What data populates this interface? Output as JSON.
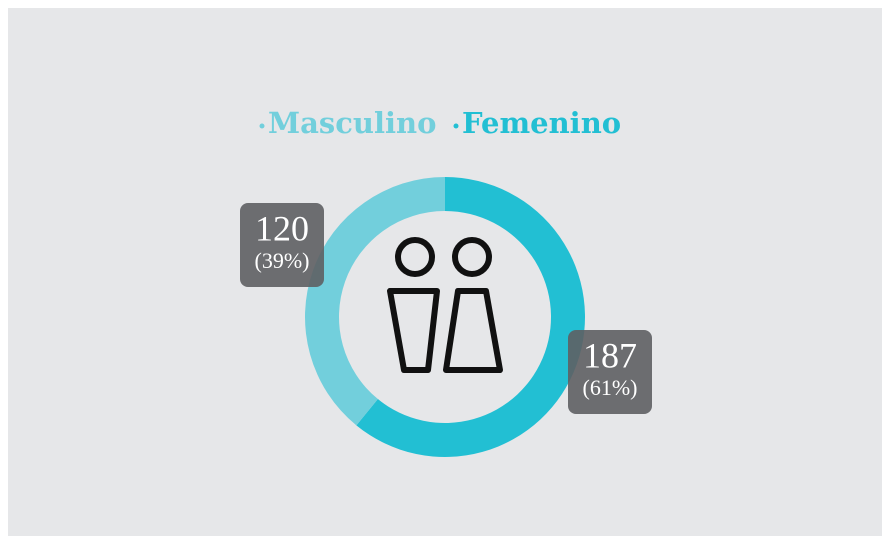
{
  "chart_data": {
    "type": "donut",
    "categories": [
      "Masculino",
      "Femenino"
    ],
    "values": [
      120,
      187
    ],
    "percentages": [
      39,
      61
    ],
    "percentage_labels": [
      "(39%)",
      "(61%)"
    ],
    "colors": [
      "#72cfdc",
      "#22bfd3"
    ],
    "legend": "top"
  }
}
